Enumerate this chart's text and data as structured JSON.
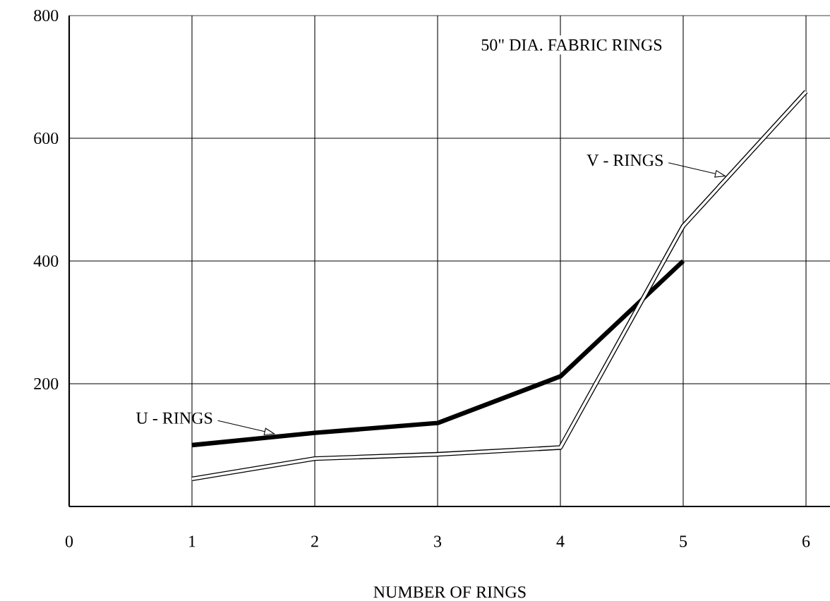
{
  "chart_data": {
    "type": "line",
    "title": "50\" DIA. FABRIC RINGS",
    "xlabel": "NUMBER OF RINGS",
    "x": [
      1,
      2,
      3,
      4,
      5,
      6
    ],
    "series": [
      {
        "color": "#000000",
        "values": [
          100,
          120,
          136,
          212,
          400,
          null
        ],
        "line_style": "solid"
      },
      {
        "color": "#000000",
        "values": [
          45,
          78,
          85,
          96,
          457,
          676
        ],
        "line_style": "solid"
      }
    ],
    "annotations": [
      {
        "text": "U - RINGS",
        "x": 1.68,
        "y": 118
      },
      {
        "text": "V - RINGS",
        "x": 5.35,
        "y": 538
      }
    ],
    "xlim": [
      0,
      6.2
    ],
    "ylim": [
      0,
      800
    ],
    "xticks": [
      0,
      1,
      2,
      3,
      4,
      5,
      6
    ],
    "yticks": [
      200,
      400,
      600,
      800
    ],
    "grid": true
  }
}
